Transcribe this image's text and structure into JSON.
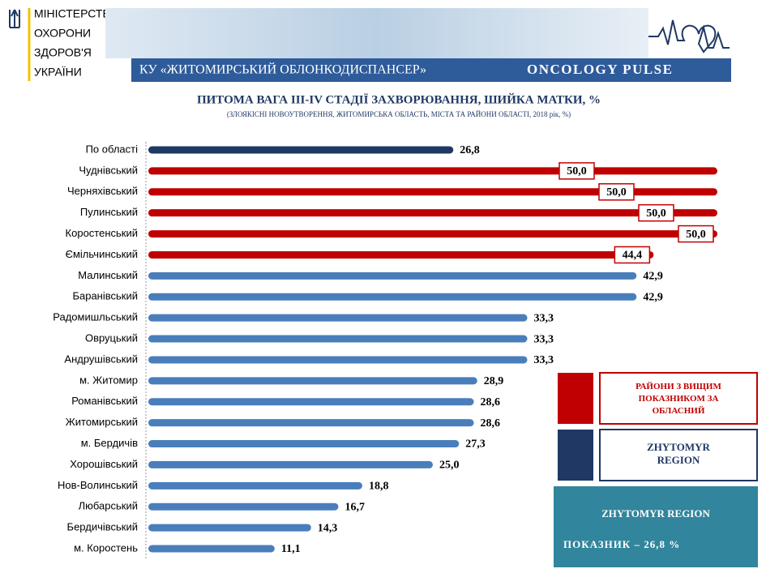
{
  "header": {
    "ministry": [
      "МІНІСТЕРСТВО",
      "ОХОРОНИ",
      "ЗДОРОВ'Я",
      "УКРАЇНИ"
    ],
    "institution": "КУ «ЖИТОМИРСЬКИЙ ОБЛОНКОДИСПАНСЕР»",
    "brand": "ONCOLOGY PULSE"
  },
  "chart_data": {
    "type": "bar",
    "orientation": "horizontal",
    "title": "ПИТОМА ВАГА III-IV СТАДІЇ ЗАХВОРЮВАННЯ, ШИЙКА МАТКИ, %",
    "subtitle": "(ЗЛОЯКІСНІ НОВОУТВОРЕННЯ, ЖИТОМИРСЬКА ОБЛАСТЬ, МІСТА ТА РАЙОНИ ОБЛАСТІ, 2018 рік, %)",
    "categories": [
      "По області",
      "Чуднівський",
      "Черняхівський",
      "Пулинський",
      "Коростенський",
      "Ємільчинський",
      "Малинський",
      "Баранівський",
      "Радомишльський",
      "Овруцький",
      "Андрушівський",
      "м. Житомир",
      "Романівський",
      "Житомирський",
      "м. Бердичів",
      "Хорошівський",
      "Нов-Волинський",
      "Любарський",
      "Бердичівський",
      "м. Коростень"
    ],
    "values": [
      26.8,
      50,
      50,
      50,
      50,
      44.4,
      42.9,
      42.9,
      33.3,
      33.3,
      33.3,
      28.9,
      28.6,
      28.6,
      27.3,
      25,
      18.8,
      16.7,
      14.3,
      11.1
    ],
    "value_labels": [
      "26,8",
      "50,0",
      "50,0",
      "50,0",
      "50,0",
      "44,4",
      "42,9",
      "42,9",
      "33,3",
      "33,3",
      "33,3",
      "28,9",
      "28,6",
      "28,6",
      "27,3",
      "25,0",
      "18,8",
      "16,7",
      "14,3",
      "11,1"
    ],
    "colors": [
      "#1f3864",
      "#c00000",
      "#c00000",
      "#c00000",
      "#c00000",
      "#c00000",
      "#4a7ebb",
      "#4a7ebb",
      "#4a7ebb",
      "#4a7ebb",
      "#4a7ebb",
      "#4a7ebb",
      "#4a7ebb",
      "#4a7ebb",
      "#4a7ebb",
      "#4a7ebb",
      "#4a7ebb",
      "#4a7ebb",
      "#4a7ebb",
      "#4a7ebb"
    ],
    "legend": [
      {
        "label": "РАЙОНИ З ВИЩИМ ПОКАЗНИКОМ ЗА ОБЛАСНИЙ",
        "color": "#c00000"
      },
      {
        "label": "ZHYTOMYR REGION",
        "color": "#1f3864"
      }
    ],
    "summary_box": {
      "title": "ZHYTOMYR REGION",
      "text": "ПОКАЗНИК – 26,8 %"
    }
  }
}
